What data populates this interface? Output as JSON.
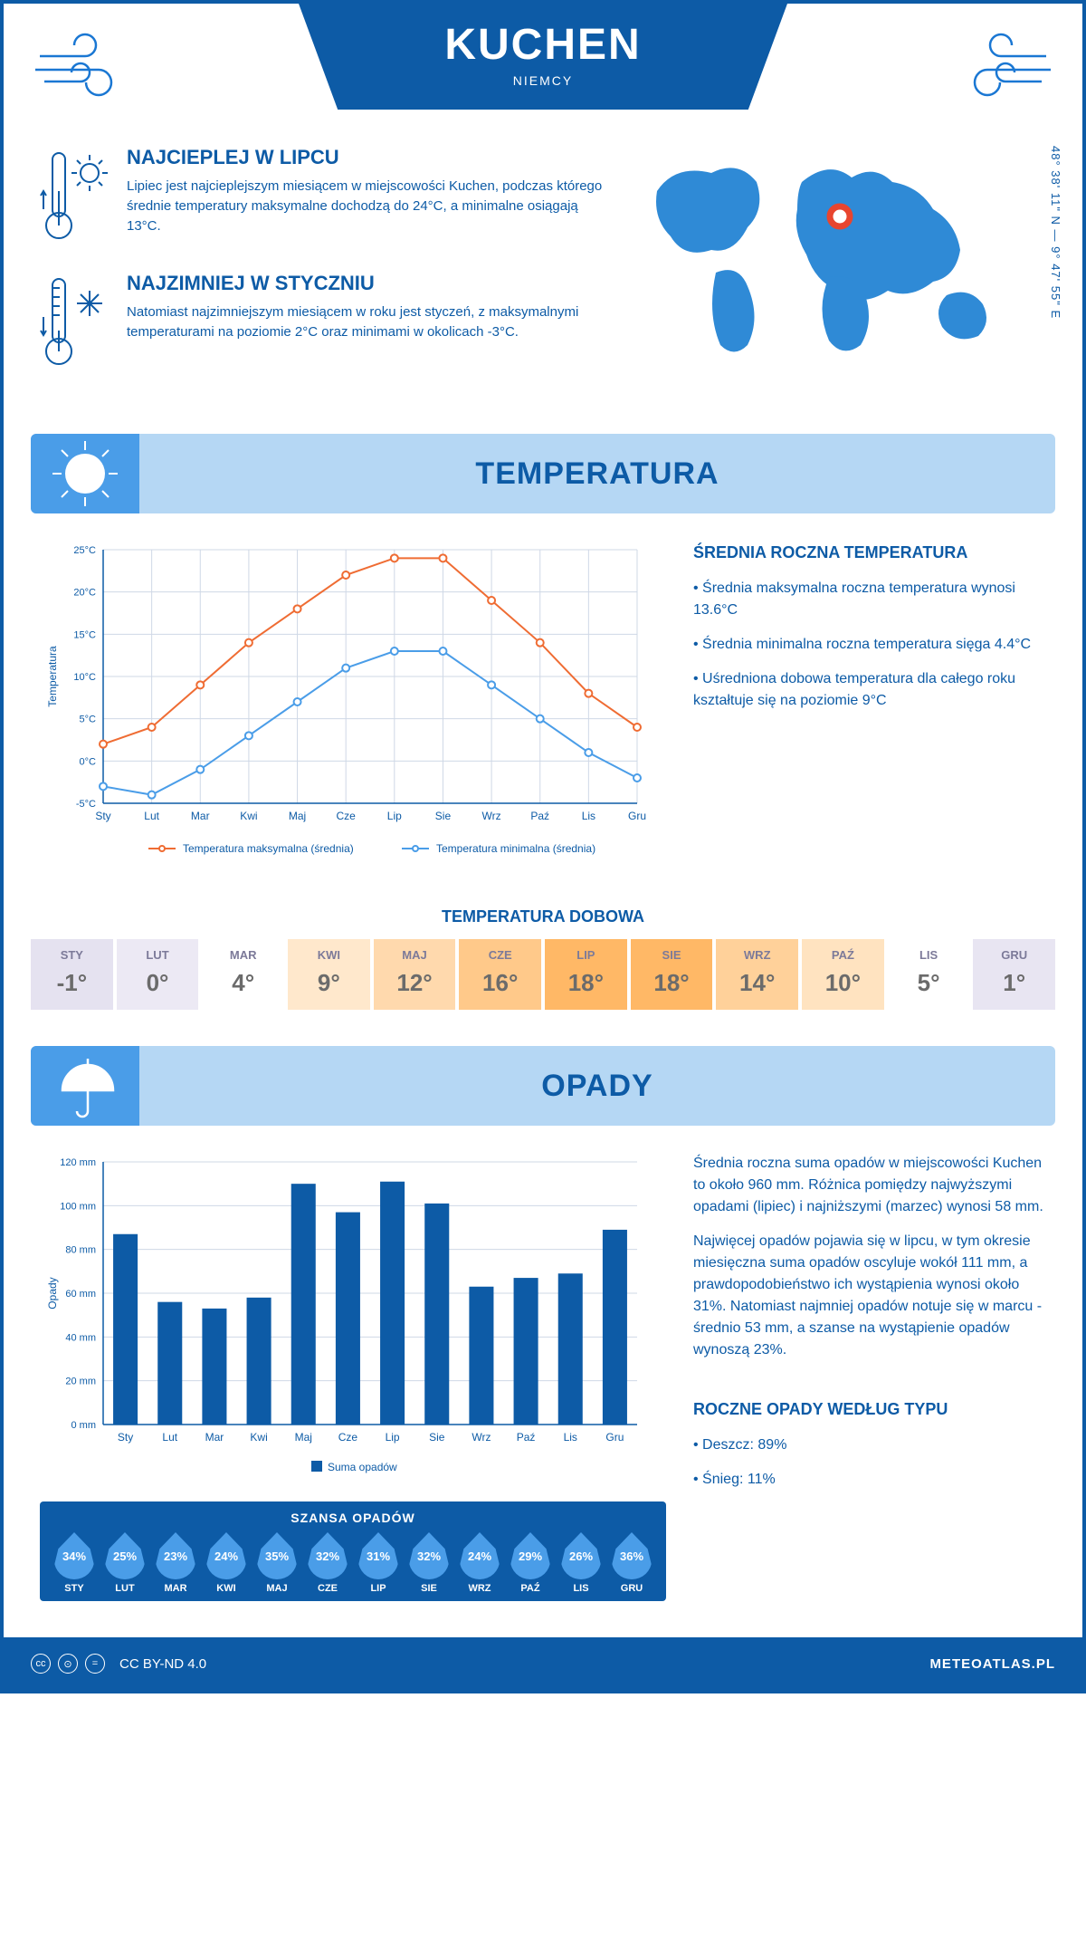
{
  "header": {
    "city": "KUCHEN",
    "country": "NIEMCY"
  },
  "coords": "48° 38' 11\" N — 9° 47' 55\" E",
  "warm": {
    "title": "NAJCIEPLEJ W LIPCU",
    "text": "Lipiec jest najcieplejszym miesiącem w miejscowości Kuchen, podczas którego średnie temperatury maksymalne dochodzą do 24°C, a minimalne osiągają 13°C."
  },
  "cold": {
    "title": "NAJZIMNIEJ W STYCZNIU",
    "text": "Natomiast najzimniejszym miesiącem w roku jest styczeń, z maksymalnymi temperaturami na poziomie 2°C oraz minimami w okolicach -3°C."
  },
  "sections": {
    "temp": "TEMPERATURA",
    "rain": "OPADY"
  },
  "months": [
    "Sty",
    "Lut",
    "Mar",
    "Kwi",
    "Maj",
    "Cze",
    "Lip",
    "Sie",
    "Wrz",
    "Paź",
    "Lis",
    "Gru"
  ],
  "months_upper": [
    "STY",
    "LUT",
    "MAR",
    "KWI",
    "MAJ",
    "CZE",
    "LIP",
    "SIE",
    "WRZ",
    "PAŹ",
    "LIS",
    "GRU"
  ],
  "temp_chart": {
    "type": "line",
    "y_label": "Temperatura",
    "ylim": [
      -5,
      25
    ],
    "ytick_step": 5,
    "y_ticks": [
      "-5°C",
      "0°C",
      "5°C",
      "10°C",
      "15°C",
      "20°C",
      "25°C"
    ],
    "series_max": {
      "label": "Temperatura maksymalna (średnia)",
      "color": "#ef6c33",
      "values": [
        2,
        4,
        9,
        14,
        18,
        22,
        24,
        24,
        19,
        14,
        8,
        4
      ]
    },
    "series_min": {
      "label": "Temperatura minimalna (średnia)",
      "color": "#4a9de8",
      "values": [
        -3,
        -4,
        -1,
        3,
        7,
        11,
        13,
        13,
        9,
        5,
        1,
        -2
      ]
    },
    "grid_color": "#cfd8e6",
    "background_color": "#ffffff",
    "axis_fontsize": 12,
    "line_width": 2,
    "marker": "circle",
    "marker_size": 4
  },
  "temp_side": {
    "title": "ŚREDNIA ROCZNA TEMPERATURA",
    "b1": "• Średnia maksymalna roczna temperatura wynosi 13.6°C",
    "b2": "• Średnia minimalna roczna temperatura sięga 4.4°C",
    "b3": "• Uśredniona dobowa temperatura dla całego roku kształtuje się na poziomie 9°C"
  },
  "dobowa_title": "TEMPERATURA DOBOWA",
  "daily_temp": {
    "values": [
      "-1°",
      "0°",
      "4°",
      "9°",
      "12°",
      "16°",
      "18°",
      "18°",
      "14°",
      "10°",
      "5°",
      "1°"
    ],
    "colors": [
      "#e5e2f0",
      "#ece9f4",
      "#ffffff",
      "#ffe8cc",
      "#ffd9ad",
      "#ffc98a",
      "#ffb866",
      "#ffb866",
      "#ffd19a",
      "#ffe3c0",
      "#ffffff",
      "#e8e5f2"
    ]
  },
  "rain_chart": {
    "type": "bar",
    "y_label": "Opady",
    "ylim": [
      0,
      120
    ],
    "ytick_step": 20,
    "y_ticks": [
      "0 mm",
      "20 mm",
      "40 mm",
      "60 mm",
      "80 mm",
      "100 mm",
      "120 mm"
    ],
    "values": [
      87,
      56,
      53,
      58,
      110,
      97,
      111,
      101,
      63,
      67,
      69,
      89
    ],
    "bar_color": "#0d5ba6",
    "grid_color": "#cfd8e6",
    "legend": "Suma opadów",
    "bar_width": 0.55
  },
  "rain_side": {
    "p1": "Średnia roczna suma opadów w miejscowości Kuchen to około 960 mm. Różnica pomiędzy najwyższymi opadami (lipiec) i najniższymi (marzec) wynosi 58 mm.",
    "p2": "Najwięcej opadów pojawia się w lipcu, w tym okresie miesięczna suma opadów oscyluje wokół 111 mm, a prawdopodobieństwo ich wystąpienia wynosi około 31%. Natomiast najmniej opadów notuje się w marcu - średnio 53 mm, a szanse na wystąpienie opadów wynoszą 23%."
  },
  "chance_title": "SZANSA OPADÓW",
  "chance_values": [
    "34%",
    "25%",
    "23%",
    "24%",
    "35%",
    "32%",
    "31%",
    "32%",
    "24%",
    "29%",
    "26%",
    "36%"
  ],
  "rain_type": {
    "title": "ROCZNE OPADY WEDŁUG TYPU",
    "b1": "• Deszcz: 89%",
    "b2": "• Śnieg: 11%"
  },
  "footer": {
    "license": "CC BY-ND 4.0",
    "site": "METEOATLAS.PL"
  }
}
